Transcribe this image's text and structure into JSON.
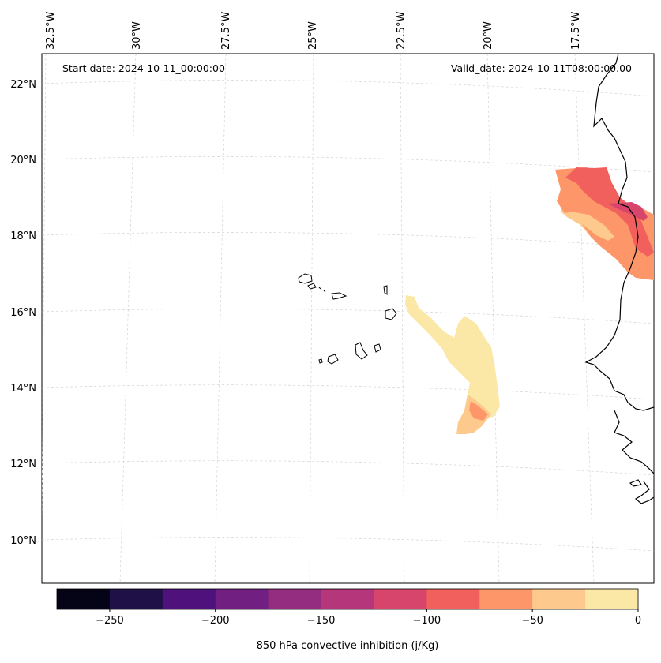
{
  "header": {
    "start_date": "Start date: 2024-10-11_00:00:00",
    "valid_date": "Valid_date: 2024-10-11T08:00:00.00"
  },
  "top_lon_labels": [
    "32.5°W",
    "30°W",
    "27.5°W",
    "25°W",
    "22.5°W",
    "20°W",
    "17.5°W"
  ],
  "left_lat_labels": [
    "22°N",
    "20°N",
    "18°N",
    "16°N",
    "14°N",
    "12°N",
    "10°N"
  ],
  "colorbar": {
    "label": "850 hPa convective inhibition (j/Kg)",
    "ticks": [
      "−250",
      "−200",
      "−150",
      "−100",
      "−50",
      "0"
    ],
    "bins": [
      {
        "from": -275,
        "to": -250,
        "color": "#050416"
      },
      {
        "from": -250,
        "to": -225,
        "color": "#1f1147"
      },
      {
        "from": -225,
        "to": -200,
        "color": "#4f117b"
      },
      {
        "from": -200,
        "to": -175,
        "color": "#711f81"
      },
      {
        "from": -175,
        "to": -150,
        "color": "#942c80"
      },
      {
        "from": -150,
        "to": -125,
        "color": "#b5367a"
      },
      {
        "from": -125,
        "to": -100,
        "color": "#d8456c"
      },
      {
        "from": -100,
        "to": -75,
        "color": "#f1605d"
      },
      {
        "from": -75,
        "to": -50,
        "color": "#fd9668"
      },
      {
        "from": -50,
        "to": -25,
        "color": "#fec98d"
      },
      {
        "from": -25,
        "to": 0,
        "color": "#fce8a6"
      }
    ]
  }
}
